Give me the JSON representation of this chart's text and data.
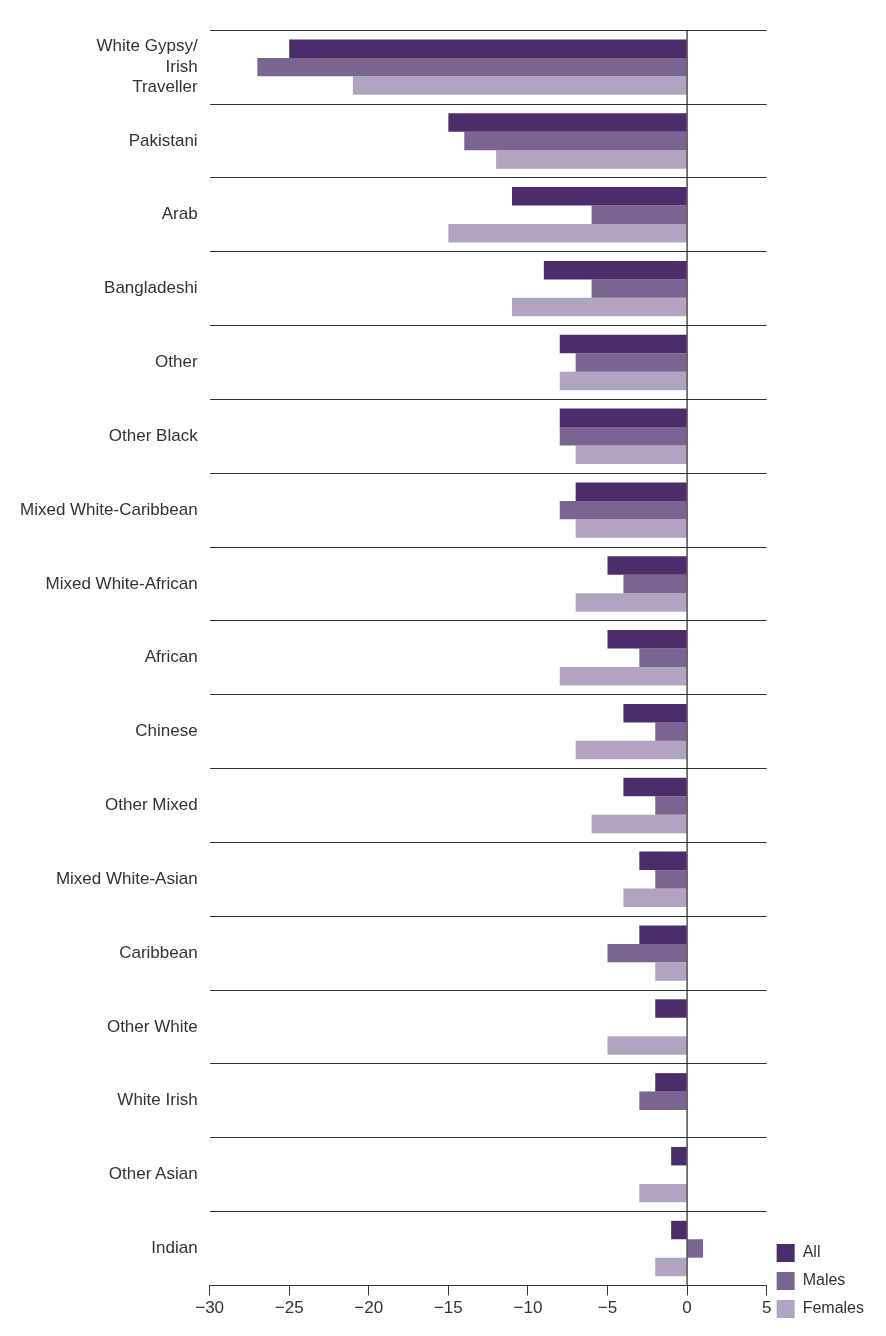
{
  "chart_data": {
    "type": "bar",
    "orientation": "horizontal",
    "categories": [
      "White Gypsy/ Irish Traveller",
      "Pakistani",
      "Arab",
      "Bangladeshi",
      "Other",
      "Other Black",
      "Mixed White-Caribbean",
      "Mixed White-African",
      "African",
      "Chinese",
      "Other Mixed",
      "Mixed White-Asian",
      "Caribbean",
      "Other White",
      "White Irish",
      "Other Asian",
      "Indian"
    ],
    "series": [
      {
        "name": "All",
        "color": "#4b2d6b",
        "values": [
          -25,
          -15,
          -11,
          -9,
          -8,
          -8,
          -7,
          -5,
          -5,
          -4,
          -4,
          -3,
          -3,
          -2,
          -2,
          -1,
          -1
        ]
      },
      {
        "name": "Males",
        "color": "#7b6590",
        "values": [
          -27,
          -14,
          -6,
          -6,
          -7,
          -8,
          -8,
          -4,
          -3,
          -2,
          -2,
          -2,
          -5,
          0,
          -3,
          0,
          1
        ]
      },
      {
        "name": "Females",
        "color": "#b0a4c0",
        "values": [
          -21,
          -12,
          -15,
          -11,
          -8,
          -7,
          -7,
          -7,
          -8,
          -7,
          -6,
          -4,
          -2,
          -5,
          0,
          -3,
          -2
        ]
      }
    ],
    "xlim": [
      -30,
      5
    ],
    "xticks": [
      {
        "value": -30,
        "label": "−30"
      },
      {
        "value": -25,
        "label": "−25"
      },
      {
        "value": -20,
        "label": "−20"
      },
      {
        "value": -15,
        "label": "−15"
      },
      {
        "value": -10,
        "label": "−10"
      },
      {
        "value": -5,
        "label": "−5"
      },
      0,
      5
    ],
    "ref_lines": [
      {
        "axis": "x",
        "value": 0,
        "color": "#222222"
      }
    ],
    "grid": "y",
    "legend": "bottom right"
  }
}
